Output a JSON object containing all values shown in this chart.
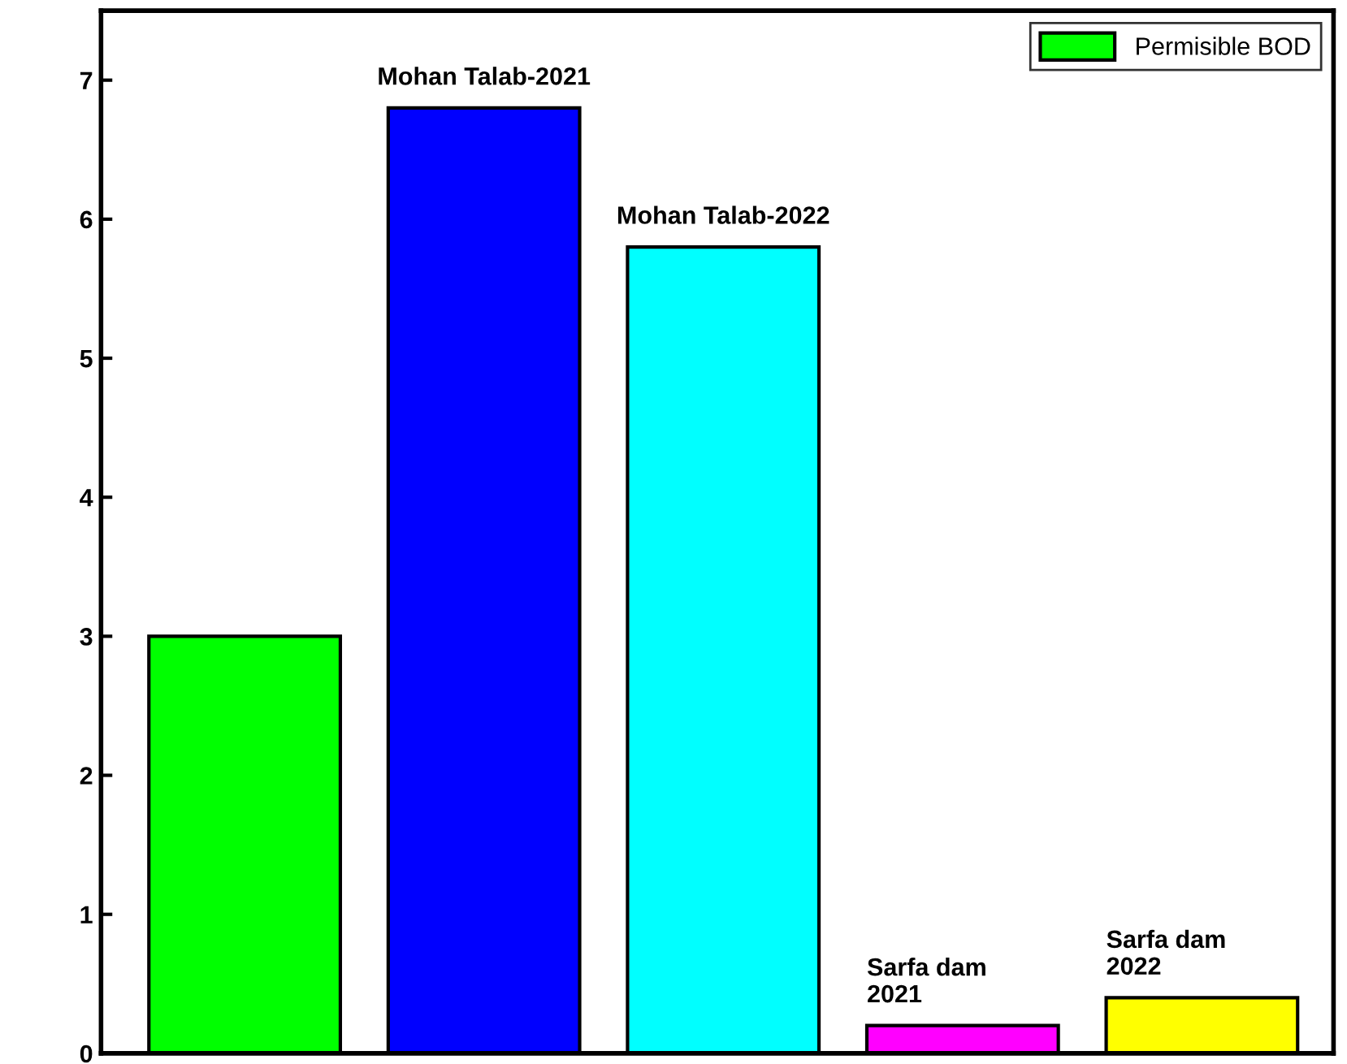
{
  "chart_data": {
    "type": "bar",
    "categories": [
      null,
      "Mohan Talab-2021",
      "Mohan Talab-2022",
      "Sarfa dam\n2021",
      "Sarfa dam\n2022"
    ],
    "series": [
      {
        "name": "Permisible BOD",
        "color": "#00ff00",
        "values": [
          3,
          null,
          null,
          null,
          null
        ]
      },
      {
        "colors": [
          "#00ff00",
          "#0000ff",
          "#00ffff",
          "#ff00ff",
          "#ffff00"
        ],
        "values": [
          null,
          6.8,
          5.8,
          0.2,
          0.4
        ]
      }
    ],
    "ylim": [
      0,
      7.5
    ],
    "yticks": [
      0,
      1,
      2,
      3,
      4,
      5,
      6,
      7
    ],
    "tick_labels": "y",
    "grid": false,
    "legend": "top right"
  }
}
